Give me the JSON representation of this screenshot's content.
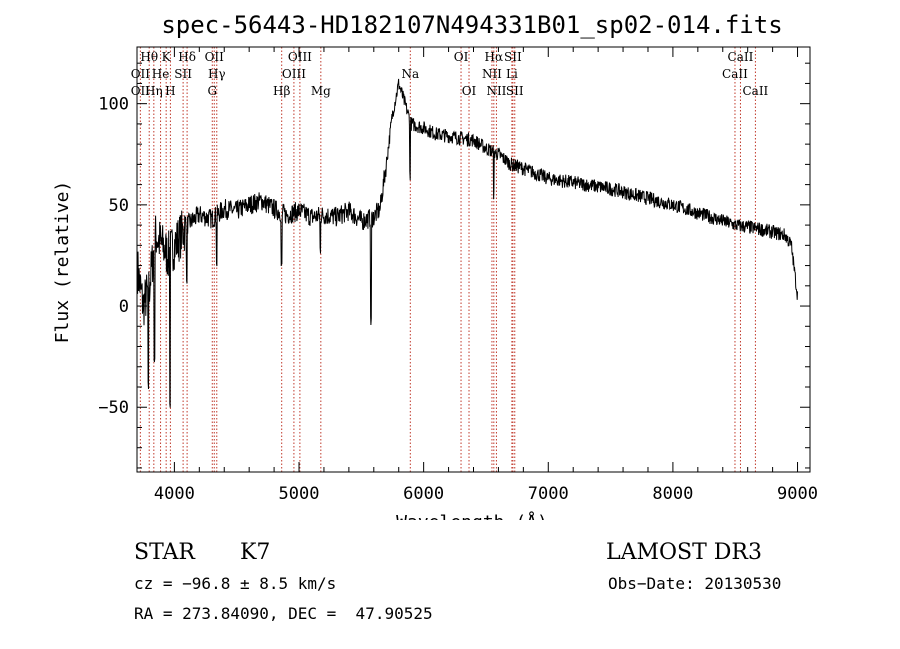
{
  "chart_data": {
    "type": "line",
    "title": "spec-56443-HD182107N494331B01_sp02-014.fits",
    "xlabel": "Wavelength (Å)",
    "ylabel": "Flux (relative)",
    "xlim": [
      3700,
      9100
    ],
    "ylim": [
      -82,
      128
    ],
    "xticks": [
      4000,
      5000,
      6000,
      7000,
      8000,
      9000
    ],
    "yticks": [
      -50,
      0,
      50,
      100
    ],
    "xtick_labels": [
      "4000",
      "5000",
      "6000",
      "7000",
      "8000",
      "9000"
    ],
    "ytick_labels": [
      "−50",
      "0",
      "50",
      "100"
    ],
    "spectrum_anchors": [
      [
        3700,
        20
      ],
      [
        3750,
        0
      ],
      [
        3800,
        10
      ],
      [
        3850,
        35
      ],
      [
        3900,
        30
      ],
      [
        3950,
        25
      ],
      [
        4000,
        30
      ],
      [
        4050,
        35
      ],
      [
        4100,
        40
      ],
      [
        4200,
        45
      ],
      [
        4300,
        43
      ],
      [
        4400,
        48
      ],
      [
        4500,
        47
      ],
      [
        4600,
        50
      ],
      [
        4700,
        52
      ],
      [
        4800,
        48
      ],
      [
        4900,
        45
      ],
      [
        5000,
        47
      ],
      [
        5100,
        44
      ],
      [
        5200,
        45
      ],
      [
        5300,
        44
      ],
      [
        5400,
        47
      ],
      [
        5500,
        42
      ],
      [
        5600,
        44
      ],
      [
        5650,
        48
      ],
      [
        5700,
        70
      ],
      [
        5750,
        95
      ],
      [
        5800,
        110
      ],
      [
        5850,
        100
      ],
      [
        5900,
        90
      ],
      [
        6000,
        88
      ],
      [
        6100,
        85
      ],
      [
        6200,
        84
      ],
      [
        6300,
        83
      ],
      [
        6400,
        82
      ],
      [
        6500,
        78
      ],
      [
        6600,
        75
      ],
      [
        6700,
        70
      ],
      [
        6800,
        68
      ],
      [
        7000,
        63
      ],
      [
        7500,
        58
      ],
      [
        8000,
        50
      ],
      [
        8500,
        40
      ],
      [
        8700,
        38
      ],
      [
        8900,
        35
      ],
      [
        8950,
        30
      ],
      [
        9000,
        5
      ]
    ],
    "spectrum_dips": [
      [
        3790,
        -40
      ],
      [
        3840,
        -25
      ],
      [
        3965,
        -48
      ],
      [
        4100,
        10
      ],
      [
        4340,
        20
      ],
      [
        4860,
        20
      ],
      [
        5170,
        28
      ],
      [
        5577,
        -8
      ],
      [
        5890,
        65
      ],
      [
        6563,
        55
      ]
    ],
    "lines": [
      {
        "label": "Hθ",
        "x": 3798,
        "row": 1
      },
      {
        "label": "K",
        "x": 3934,
        "row": 1
      },
      {
        "label": "Hδ",
        "x": 4102,
        "row": 1
      },
      {
        "label": "OII",
        "x": 4320,
        "row": 1
      },
      {
        "label": "OIII",
        "x": 5007,
        "row": 1
      },
      {
        "label": "OI",
        "x": 6300,
        "row": 1
      },
      {
        "label": "Hα",
        "x": 6563,
        "row": 1
      },
      {
        "label": "SII",
        "x": 6716,
        "row": 1
      },
      {
        "label": "CaII",
        "x": 8542,
        "row": 1
      },
      {
        "label": "OII",
        "x": 3727,
        "row": 2
      },
      {
        "label": "He",
        "x": 3889,
        "row": 2
      },
      {
        "label": "SII",
        "x": 4070,
        "row": 2
      },
      {
        "label": "Hγ",
        "x": 4340,
        "row": 2
      },
      {
        "label": "OIII",
        "x": 4959,
        "row": 2
      },
      {
        "label": "Na",
        "x": 5893,
        "row": 2
      },
      {
        "label": "NII",
        "x": 6548,
        "row": 2
      },
      {
        "label": "Li",
        "x": 6708,
        "row": 2
      },
      {
        "label": "CaII",
        "x": 8498,
        "row": 2
      },
      {
        "label": "OII",
        "x": 3727,
        "row": 3
      },
      {
        "label": "Hη",
        "x": 3835,
        "row": 3
      },
      {
        "label": "H",
        "x": 3968,
        "row": 3
      },
      {
        "label": "G",
        "x": 4304,
        "row": 3
      },
      {
        "label": "Hβ",
        "x": 4861,
        "row": 3
      },
      {
        "label": "Mg",
        "x": 5175,
        "row": 3
      },
      {
        "label": "OI",
        "x": 6364,
        "row": 3
      },
      {
        "label": "NII",
        "x": 6584,
        "row": 3
      },
      {
        "label": "SII",
        "x": 6731,
        "row": 3
      },
      {
        "label": "CaII",
        "x": 8662,
        "row": 3
      }
    ]
  },
  "info": {
    "object_class": "STAR",
    "subclass": "K7",
    "survey": "LAMOST DR3",
    "redshift_line": "cz = −96.8 ± 8.5 km/s",
    "obs_date": "Obs−Date: 20130530",
    "coords": "RA = 273.84090, DEC =  47.90525"
  },
  "colors": {
    "line_marker": "#c0392b",
    "spectrum": "#000000"
  }
}
